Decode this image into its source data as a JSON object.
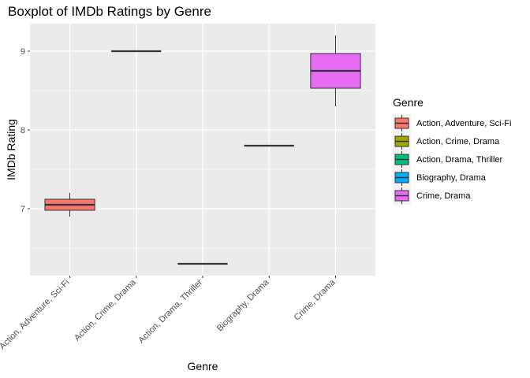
{
  "chart_data": {
    "type": "boxplot",
    "title": "Boxplot of IMDb Ratings by Genre",
    "xlabel": "Genre",
    "ylabel": "IMDb Rating",
    "ylim": [
      6.15,
      9.35
    ],
    "y_ticks": [
      7,
      8,
      9
    ],
    "grid": true,
    "legend": {
      "title": "Genre",
      "position": "right"
    },
    "categories": [
      "Action, Adventure, Sci-Fi",
      "Action, Crime, Drama",
      "Action, Drama, Thriller",
      "Biography, Drama",
      "Crime, Drama"
    ],
    "colors": [
      "#F8766D",
      "#A3A500",
      "#00BF7D",
      "#00B0F6",
      "#E76BF3"
    ],
    "boxes": [
      {
        "min": 6.9,
        "q1": 6.98,
        "median": 7.05,
        "q3": 7.12,
        "max": 7.2
      },
      {
        "min": 9.0,
        "q1": 9.0,
        "median": 9.0,
        "q3": 9.0,
        "max": 9.0
      },
      {
        "min": 6.3,
        "q1": 6.3,
        "median": 6.3,
        "q3": 6.3,
        "max": 6.3
      },
      {
        "min": 7.8,
        "q1": 7.8,
        "median": 7.8,
        "q3": 7.8,
        "max": 7.8
      },
      {
        "min": 8.3,
        "q1": 8.53,
        "median": 8.75,
        "q3": 8.97,
        "max": 9.2
      }
    ]
  }
}
